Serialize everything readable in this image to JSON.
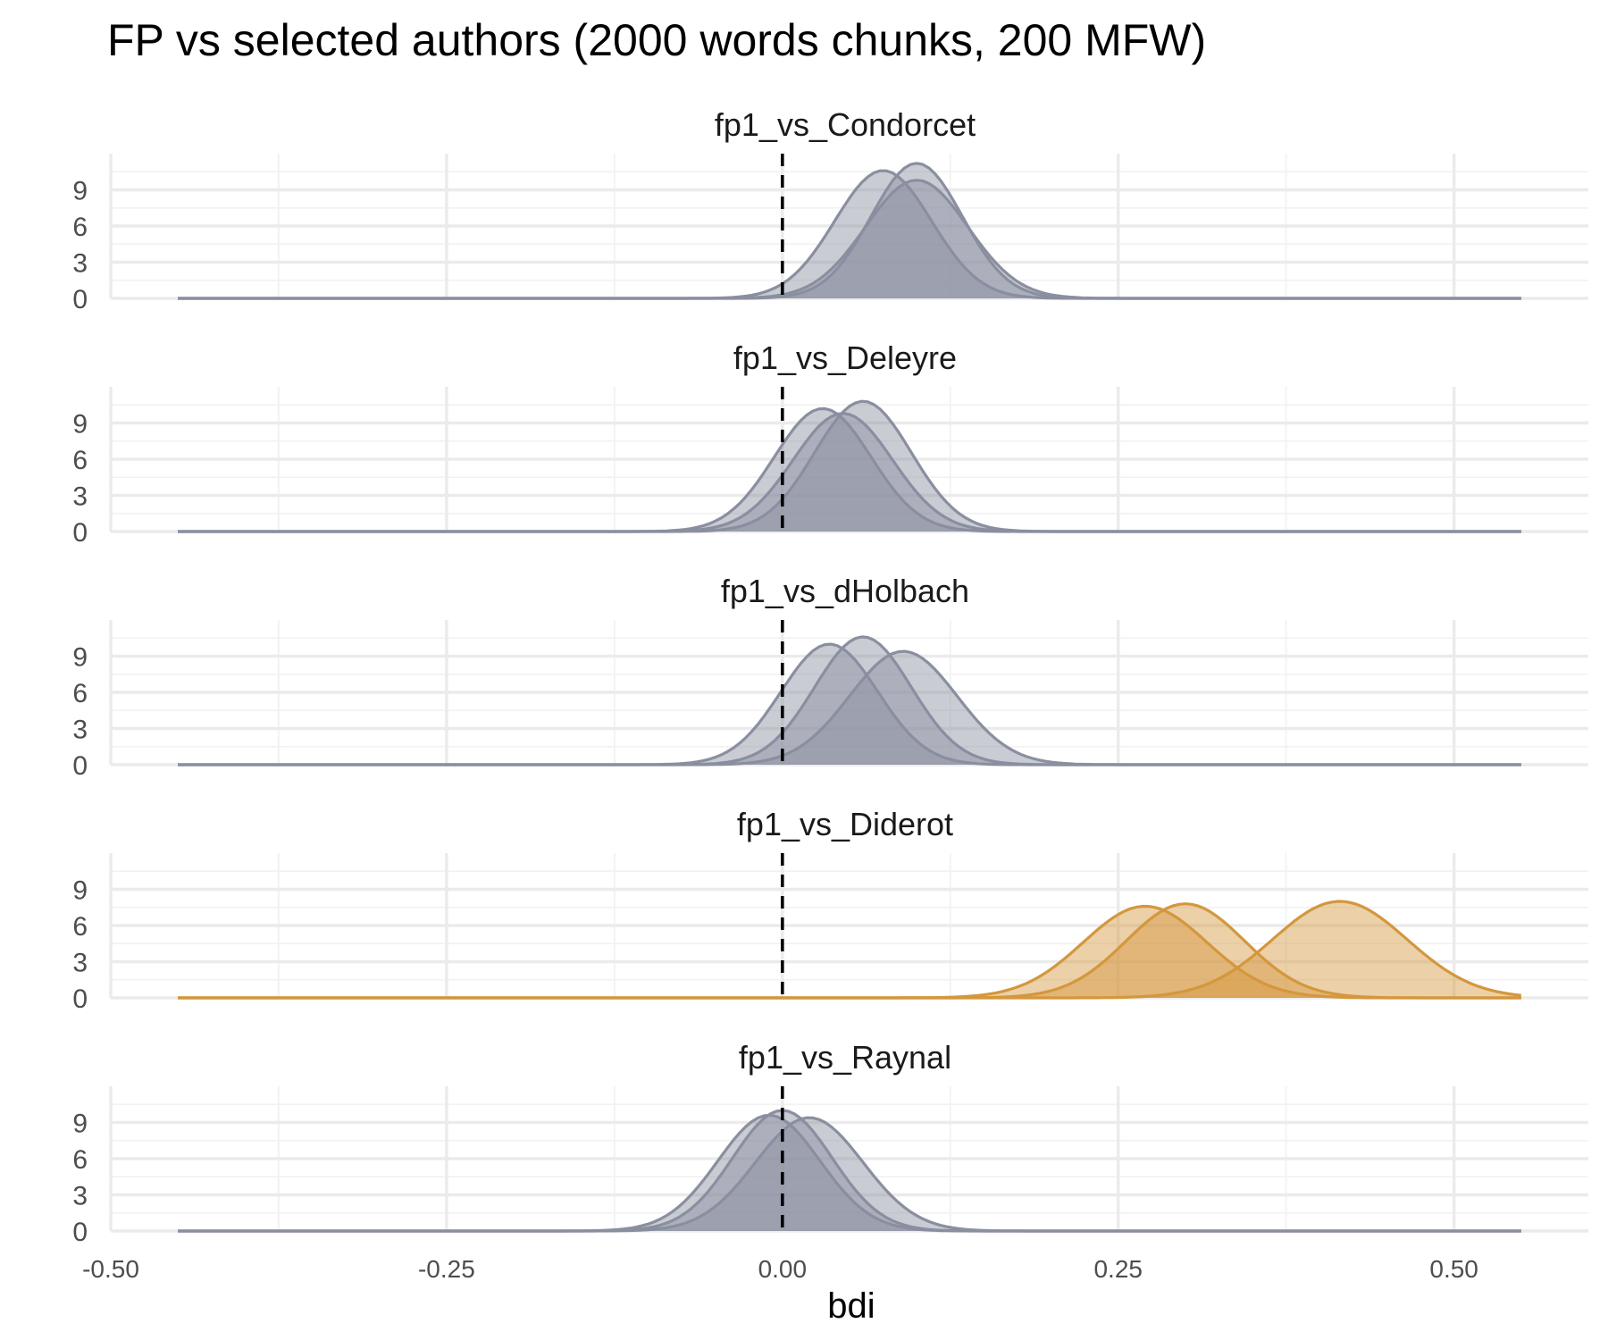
{
  "chart_data": {
    "type": "area",
    "subtype": "density ridges (faceted)",
    "title": "FP vs selected authors (2000 words chunks, 200 MFW)",
    "xlabel": "bdi",
    "ylabel": "",
    "xlim": [
      -0.5,
      0.6
    ],
    "x_ticks": [
      -0.5,
      -0.25,
      0.0,
      0.25,
      0.5
    ],
    "x_tick_labels": [
      "-0.50",
      "-0.25",
      "0.00",
      "0.25",
      "0.50"
    ],
    "ylim": [
      0,
      12
    ],
    "y_ticks": [
      0,
      3,
      6,
      9
    ],
    "y_tick_labels": [
      "0",
      "3",
      "6",
      "9"
    ],
    "density_x_range": [
      -0.45,
      0.55
    ],
    "reference_line": {
      "x": 0.0,
      "style": "dashed",
      "color": "#000000"
    },
    "grid": true,
    "legend": "none",
    "colors": {
      "gray": "#8a8fa0",
      "gold": "#d4973d"
    },
    "panels": [
      {
        "name": "fp1_vs_Condorcet",
        "color": "#8a8fa0",
        "series": [
          {
            "peak_x": 0.075,
            "peak_y": 10.6,
            "sd": 0.036
          },
          {
            "peak_x": 0.1,
            "peak_y": 9.8,
            "sd": 0.038
          },
          {
            "peak_x": 0.1,
            "peak_y": 11.2,
            "sd": 0.034
          }
        ]
      },
      {
        "name": "fp1_vs_Deleyre",
        "color": "#8a8fa0",
        "series": [
          {
            "peak_x": 0.03,
            "peak_y": 10.2,
            "sd": 0.036
          },
          {
            "peak_x": 0.045,
            "peak_y": 9.8,
            "sd": 0.037
          },
          {
            "peak_x": 0.06,
            "peak_y": 10.8,
            "sd": 0.036
          }
        ]
      },
      {
        "name": "fp1_vs_dHolbach",
        "color": "#8a8fa0",
        "series": [
          {
            "peak_x": 0.035,
            "peak_y": 10.0,
            "sd": 0.036
          },
          {
            "peak_x": 0.06,
            "peak_y": 10.6,
            "sd": 0.036
          },
          {
            "peak_x": 0.09,
            "peak_y": 9.4,
            "sd": 0.04
          }
        ]
      },
      {
        "name": "fp1_vs_Diderot",
        "color": "#d4973d",
        "series": [
          {
            "peak_x": 0.27,
            "peak_y": 7.6,
            "sd": 0.046
          },
          {
            "peak_x": 0.3,
            "peak_y": 7.8,
            "sd": 0.044
          },
          {
            "peak_x": 0.415,
            "peak_y": 8.0,
            "sd": 0.05
          }
        ]
      },
      {
        "name": "fp1_vs_Raynal",
        "color": "#8a8fa0",
        "series": [
          {
            "peak_x": -0.01,
            "peak_y": 9.6,
            "sd": 0.038
          },
          {
            "peak_x": 0.0,
            "peak_y": 10.0,
            "sd": 0.037
          },
          {
            "peak_x": 0.02,
            "peak_y": 9.4,
            "sd": 0.04
          }
        ]
      }
    ]
  }
}
